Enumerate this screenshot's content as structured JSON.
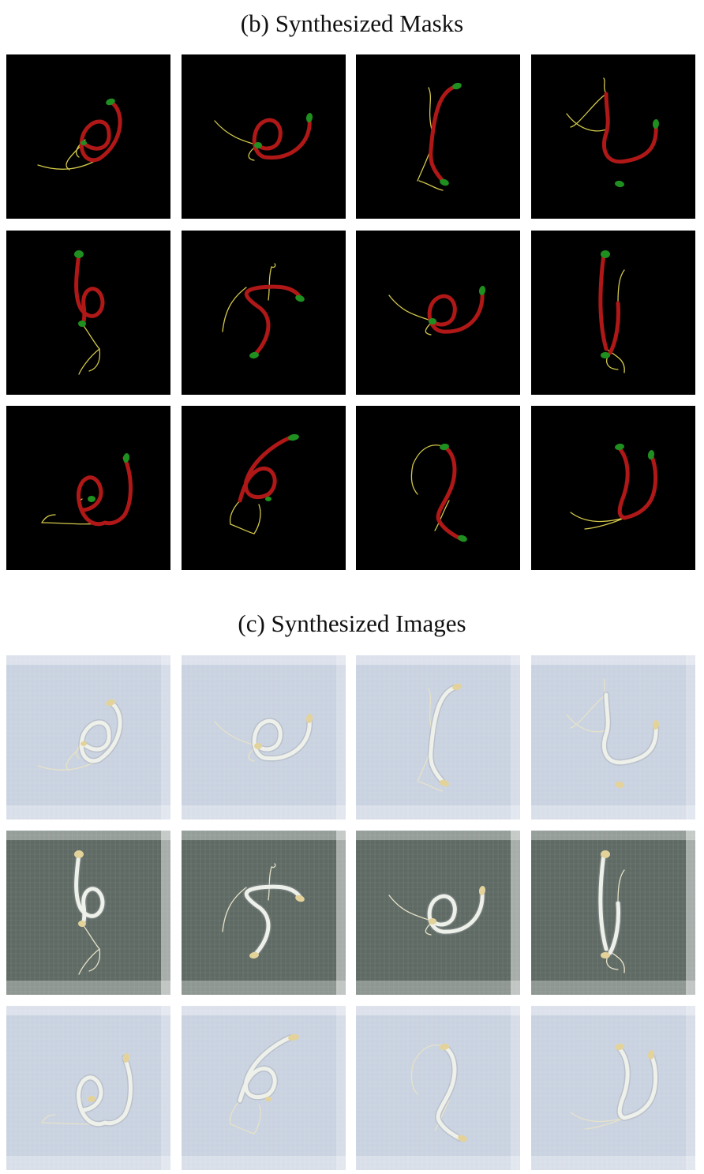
{
  "figure": {
    "section_b_title": "(b) Synthesized Masks",
    "section_c_title": "(c) Synthesized Images"
  },
  "colors": {
    "mask_background": "#000000",
    "hypocotyl": "#b01818",
    "cotyledon": "#1f8f1f",
    "root": "#d2c84a",
    "light_backdrop": "#c9d2e0",
    "dark_backdrop": "#5f6a64",
    "seedling": "#eef0ea",
    "seed": "#e3d39a"
  },
  "grid": {
    "rows": 3,
    "columns": 4
  },
  "backdrops": [
    [
      "light",
      "light",
      "light",
      "light"
    ],
    [
      "dark",
      "dark",
      "dark",
      "dark"
    ],
    [
      "light",
      "light",
      "light",
      "light"
    ]
  ]
}
